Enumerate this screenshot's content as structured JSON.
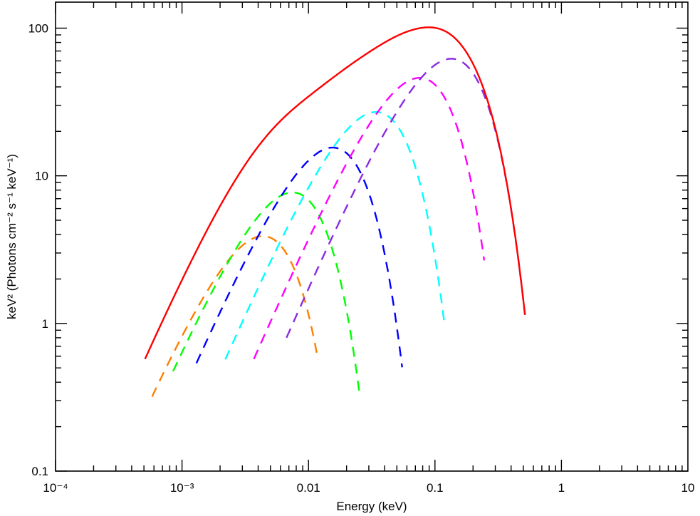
{
  "chart_data": {
    "type": "line",
    "title": "",
    "xlabel": "Energy (keV)",
    "ylabel": "keV² (Photons cm⁻² s⁻¹ keV⁻¹)",
    "xscale": "log",
    "yscale": "log",
    "xlim": [
      0.0001,
      10
    ],
    "ylim": [
      0.1,
      150
    ],
    "grid": false,
    "legend": "none",
    "x_ticks": [
      {
        "value": 0.0001,
        "label": "10⁻⁴"
      },
      {
        "value": 0.001,
        "label": "10⁻³"
      },
      {
        "value": 0.01,
        "label": "0.01"
      },
      {
        "value": 0.1,
        "label": "0.1"
      },
      {
        "value": 1,
        "label": "1"
      },
      {
        "value": 10,
        "label": "10"
      }
    ],
    "y_ticks": [
      {
        "value": 0.1,
        "label": "0.1"
      },
      {
        "value": 1,
        "label": "1"
      },
      {
        "value": 10,
        "label": "10"
      },
      {
        "value": 100,
        "label": "100"
      }
    ],
    "series": [
      {
        "color": "#ff7f00",
        "dash": true,
        "peak_energy": 0.0042,
        "peak_value": 3.9,
        "x_low_end": 0.00058,
        "x_high_end": 0.0119
      },
      {
        "color": "#00ff00",
        "dash": true,
        "peak_energy": 0.0072,
        "peak_value": 7.7,
        "x_low_end": 0.00085,
        "x_high_end": 0.0255
      },
      {
        "color": "#0000ff",
        "dash": true,
        "peak_energy": 0.015,
        "peak_value": 15.5,
        "x_low_end": 0.0013,
        "x_high_end": 0.055
      },
      {
        "color": "#00ffff",
        "dash": true,
        "peak_energy": 0.033,
        "peak_value": 27,
        "x_low_end": 0.0022,
        "x_high_end": 0.118
      },
      {
        "color": "#ff00ff",
        "dash": true,
        "peak_energy": 0.073,
        "peak_value": 46,
        "x_low_end": 0.0037,
        "x_high_end": 0.245
      },
      {
        "color": "#8a2be2",
        "dash": true,
        "peak_energy": 0.13,
        "peak_value": 62,
        "x_low_end": 0.0067,
        "x_high_end": 0.515
      },
      {
        "color": "#ff0000",
        "dash": false,
        "peak_energy": 0.08,
        "peak_value": 88,
        "x_low_end": 0.00051,
        "x_high_end": 0.515
      }
    ]
  }
}
